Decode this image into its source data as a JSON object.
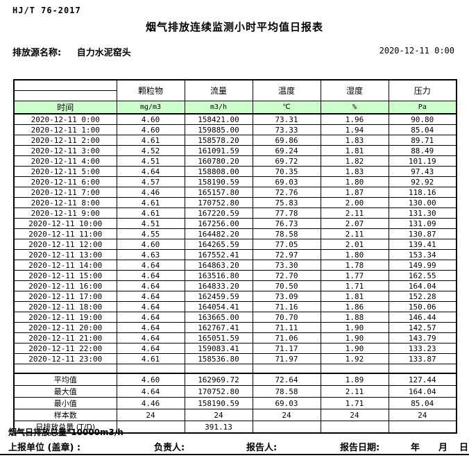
{
  "doc": {
    "standard": "HJ/T  76-2017",
    "title": "烟气排放连续监测小时平均值日报表",
    "source_label": "排放源名称:",
    "source_name": "自力水泥窑头",
    "report_datetime": "2020-12-11 0:00"
  },
  "table": {
    "time_label": "时间",
    "columns": [
      "颗粒物",
      "流量",
      "温度",
      "湿度",
      "压力"
    ],
    "units": [
      "mg/m3",
      "m3/h",
      "℃",
      "%",
      "Pa"
    ],
    "rows": [
      [
        "2020-12-11 0:00",
        "4.60",
        "158421.00",
        "73.31",
        "1.96",
        "90.80"
      ],
      [
        "2020-12-11 1:00",
        "4.60",
        "159885.00",
        "73.33",
        "1.94",
        "85.04"
      ],
      [
        "2020-12-11 2:00",
        "4.61",
        "158578.20",
        "69.86",
        "1.83",
        "89.71"
      ],
      [
        "2020-12-11 3:00",
        "4.52",
        "161091.59",
        "69.24",
        "1.81",
        "88.49"
      ],
      [
        "2020-12-11 4:00",
        "4.51",
        "160780.20",
        "69.72",
        "1.82",
        "101.19"
      ],
      [
        "2020-12-11 5:00",
        "4.64",
        "158808.00",
        "70.35",
        "1.83",
        "97.43"
      ],
      [
        "2020-12-11 6:00",
        "4.57",
        "158190.59",
        "69.03",
        "1.80",
        "92.92"
      ],
      [
        "2020-12-11 7:00",
        "4.46",
        "165157.80",
        "72.76",
        "1.87",
        "118.16"
      ],
      [
        "2020-12-11 8:00",
        "4.61",
        "170752.80",
        "75.83",
        "2.00",
        "130.00"
      ],
      [
        "2020-12-11 9:00",
        "4.61",
        "167220.59",
        "77.78",
        "2.11",
        "131.30"
      ],
      [
        "2020-12-11 10:00",
        "4.51",
        "167256.00",
        "76.73",
        "2.07",
        "131.09"
      ],
      [
        "2020-12-11 11:00",
        "4.55",
        "164482.20",
        "78.58",
        "2.11",
        "130.87"
      ],
      [
        "2020-12-11 12:00",
        "4.60",
        "164265.59",
        "77.05",
        "2.01",
        "139.41"
      ],
      [
        "2020-12-11 13:00",
        "4.63",
        "167552.41",
        "72.97",
        "1.80",
        "153.34"
      ],
      [
        "2020-12-11 14:00",
        "4.64",
        "164863.20",
        "73.30",
        "1.78",
        "149.99"
      ],
      [
        "2020-12-11 15:00",
        "4.64",
        "163516.80",
        "72.70",
        "1.77",
        "162.55"
      ],
      [
        "2020-12-11 16:00",
        "4.64",
        "164833.20",
        "70.50",
        "1.71",
        "164.04"
      ],
      [
        "2020-12-11 17:00",
        "4.64",
        "162459.59",
        "73.09",
        "1.81",
        "152.28"
      ],
      [
        "2020-12-11 18:00",
        "4.64",
        "164054.41",
        "71.16",
        "1.86",
        "150.06"
      ],
      [
        "2020-12-11 19:00",
        "4.64",
        "163665.00",
        "70.70",
        "1.88",
        "146.44"
      ],
      [
        "2020-12-11 20:00",
        "4.64",
        "162767.41",
        "71.11",
        "1.90",
        "142.57"
      ],
      [
        "2020-12-11 21:00",
        "4.64",
        "165051.59",
        "71.06",
        "1.90",
        "143.79"
      ],
      [
        "2020-12-11 22:00",
        "4.64",
        "159083.41",
        "71.17",
        "1.90",
        "133.23"
      ],
      [
        "2020-12-11 23:00",
        "4.61",
        "158536.80",
        "71.97",
        "1.92",
        "133.87"
      ]
    ],
    "summary_rows": [
      [
        "平均值",
        "4.60",
        "162969.72",
        "72.64",
        "1.89",
        "127.44"
      ],
      [
        "最大值",
        "4.64",
        "170752.80",
        "78.58",
        "2.11",
        "164.04"
      ],
      [
        "最小值",
        "4.46",
        "158190.59",
        "69.03",
        "1.71",
        "85.04"
      ],
      [
        "样本数",
        "24",
        "24",
        "24",
        "24",
        "24"
      ],
      [
        "日排放总量 (T/D)",
        "",
        "391.13",
        "",
        "",
        ""
      ]
    ]
  },
  "footer": {
    "note": "烟气日排放总量*10000m3/h",
    "report_unit_label": "上报单位 (盖章) :",
    "responsible_label": "负责人:",
    "reporter_label": "报告人:",
    "report_date_label": "报告日期:",
    "year_label": "年",
    "month_label": "月",
    "day_label": "日"
  },
  "colors": {
    "header_green": "#CCFFCC",
    "border": "#000000"
  }
}
